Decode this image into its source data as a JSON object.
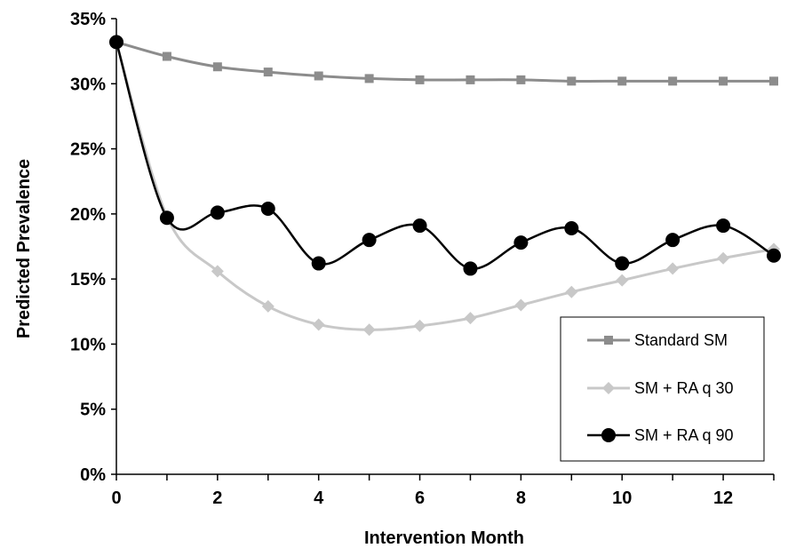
{
  "chart_data": {
    "type": "line",
    "title": "",
    "xlabel": "Intervention Month",
    "ylabel": "Predicted Prevalence",
    "x": [
      0,
      1,
      2,
      3,
      4,
      5,
      6,
      7,
      8,
      9,
      10,
      11,
      12,
      13
    ],
    "xlim": [
      0,
      13
    ],
    "xticks": [
      0,
      2,
      4,
      6,
      8,
      10,
      12
    ],
    "xtick_labels": [
      "0",
      "2",
      "4",
      "6",
      "8",
      "10",
      "12"
    ],
    "ylim": [
      0,
      35
    ],
    "yticks": [
      0,
      5,
      10,
      15,
      20,
      25,
      30,
      35
    ],
    "ytick_labels": [
      "0%",
      "5%",
      "10%",
      "15%",
      "20%",
      "25%",
      "30%",
      "35%"
    ],
    "grid": false,
    "legend_position": "bottom-right",
    "series": [
      {
        "name": "Standard SM",
        "color": "#8c8c8c",
        "marker": "square",
        "values": [
          33.2,
          32.1,
          31.3,
          30.9,
          30.6,
          30.4,
          30.3,
          30.3,
          30.3,
          30.2,
          30.2,
          30.2,
          30.2,
          30.2
        ]
      },
      {
        "name": "SM + RA q 30",
        "color": "#c8c8c8",
        "marker": "diamond",
        "values": [
          33.2,
          19.8,
          15.6,
          12.9,
          11.5,
          11.1,
          11.4,
          12.0,
          13.0,
          14.0,
          14.9,
          15.8,
          16.6,
          17.3
        ]
      },
      {
        "name": "SM + RA q 90",
        "color": "#000000",
        "marker": "circle",
        "values": [
          33.2,
          19.7,
          20.1,
          20.4,
          16.2,
          18.0,
          19.1,
          15.8,
          17.8,
          18.9,
          16.2,
          18.0,
          19.1,
          16.8
        ]
      }
    ]
  }
}
